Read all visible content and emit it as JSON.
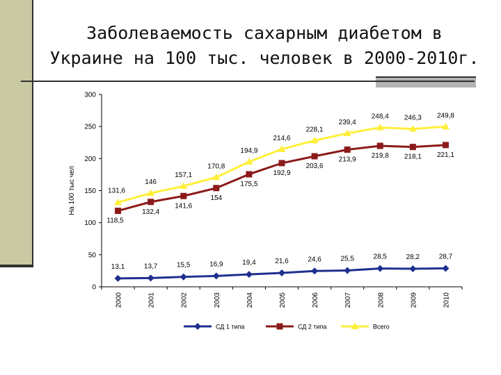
{
  "slide": {
    "title_line1": "Заболеваемость сахарным диабетом в",
    "title_line2": "Украине на 100 тыс. человек в 2000-2010г."
  },
  "chart_data": {
    "type": "line",
    "ylabel": "На 100 тыс чел",
    "ylim": [
      0,
      300
    ],
    "yticks": [
      0,
      50,
      100,
      150,
      200,
      250,
      300
    ],
    "x": [
      "2000",
      "2001",
      "2002",
      "2003",
      "2004",
      "2005",
      "2006",
      "2007",
      "2008",
      "2009",
      "2010"
    ],
    "grid": false,
    "legend_position": "bottom",
    "series": [
      {
        "name": "СД 1 типа",
        "color": "#1f2f8f",
        "marker": "diamond",
        "values": [
          13.1,
          13.7,
          15.5,
          16.9,
          19.4,
          21.6,
          24.6,
          25.5,
          28.5,
          28.2,
          28.7
        ],
        "labels": [
          "13,1",
          "13,7",
          "15,5",
          "16,9",
          "19,4",
          "21,6",
          "24,6",
          "25,5",
          "28,5",
          "28,2",
          "28,7"
        ]
      },
      {
        "name": "СД 2 типа",
        "color": "#8b1a1a",
        "marker": "square",
        "values": [
          118.5,
          132.4,
          141.6,
          154,
          175.5,
          192.9,
          203.6,
          213.9,
          219.8,
          218.1,
          221.1
        ],
        "labels": [
          "118,5",
          "132,4",
          "141,6",
          "154",
          "175,5",
          "192,9",
          "203,6",
          "213,9",
          "219,8",
          "218,1",
          "221,1"
        ]
      },
      {
        "name": "Всего",
        "color": "#ffef3a",
        "marker": "triangle",
        "values": [
          131.6,
          146,
          157.1,
          170.8,
          194.9,
          214.6,
          228.1,
          239.4,
          248.4,
          246.3,
          249.8
        ],
        "labels": [
          "131,6",
          "146",
          "157,1",
          "170,8",
          "194,9",
          "214,6",
          "228,1",
          "239,4",
          "248,4",
          "246,3",
          "249,8"
        ]
      }
    ]
  }
}
